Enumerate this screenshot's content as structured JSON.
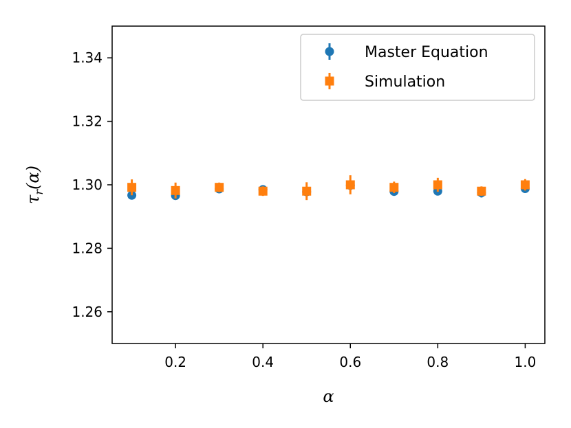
{
  "chart_data": {
    "type": "scatter",
    "title": "",
    "xlabel": "α",
    "ylabel": "τr(α)",
    "ylabel_main": "τ",
    "ylabel_sub": "r",
    "ylabel_tail": "(α)",
    "xlim": [
      0.055,
      1.045
    ],
    "ylim": [
      1.25,
      1.35
    ],
    "xticks": [
      0.2,
      0.4,
      0.6,
      0.8,
      1.0
    ],
    "xtick_labels": [
      "0.2",
      "0.4",
      "0.6",
      "0.8",
      "1.0"
    ],
    "yticks": [
      1.26,
      1.28,
      1.3,
      1.32,
      1.34
    ],
    "ytick_labels": [
      "1.26",
      "1.28",
      "1.30",
      "1.32",
      "1.34"
    ],
    "grid": false,
    "legend_position": "top-right",
    "series": [
      {
        "name": "Master Equation",
        "marker": "circle",
        "color": "#1f77b4",
        "x": [
          0.1,
          0.2,
          0.3,
          0.4,
          0.5,
          0.6,
          0.7,
          0.8,
          0.9,
          1.0
        ],
        "y": [
          1.2967,
          1.2966,
          1.2987,
          1.2985,
          1.2978,
          1.2998,
          1.2979,
          1.298,
          1.2975,
          1.2988
        ],
        "yerr": [
          0.0003,
          0.0003,
          0.0003,
          0.0003,
          0.0003,
          0.0003,
          0.0006,
          0.0008,
          0.0015,
          0.0008
        ]
      },
      {
        "name": "Simulation",
        "marker": "square",
        "color": "#ff7f0e",
        "x": [
          0.1,
          0.2,
          0.3,
          0.4,
          0.5,
          0.6,
          0.7,
          0.8,
          0.9,
          1.0
        ],
        "y": [
          1.2992,
          1.2982,
          1.2992,
          1.298,
          1.298,
          1.3,
          1.2992,
          1.3,
          1.298,
          1.3
        ],
        "yerr": [
          0.0025,
          0.0025,
          0.0015,
          0.0015,
          0.0028,
          0.003,
          0.0018,
          0.0022,
          0.0015,
          0.0018
        ]
      }
    ]
  }
}
